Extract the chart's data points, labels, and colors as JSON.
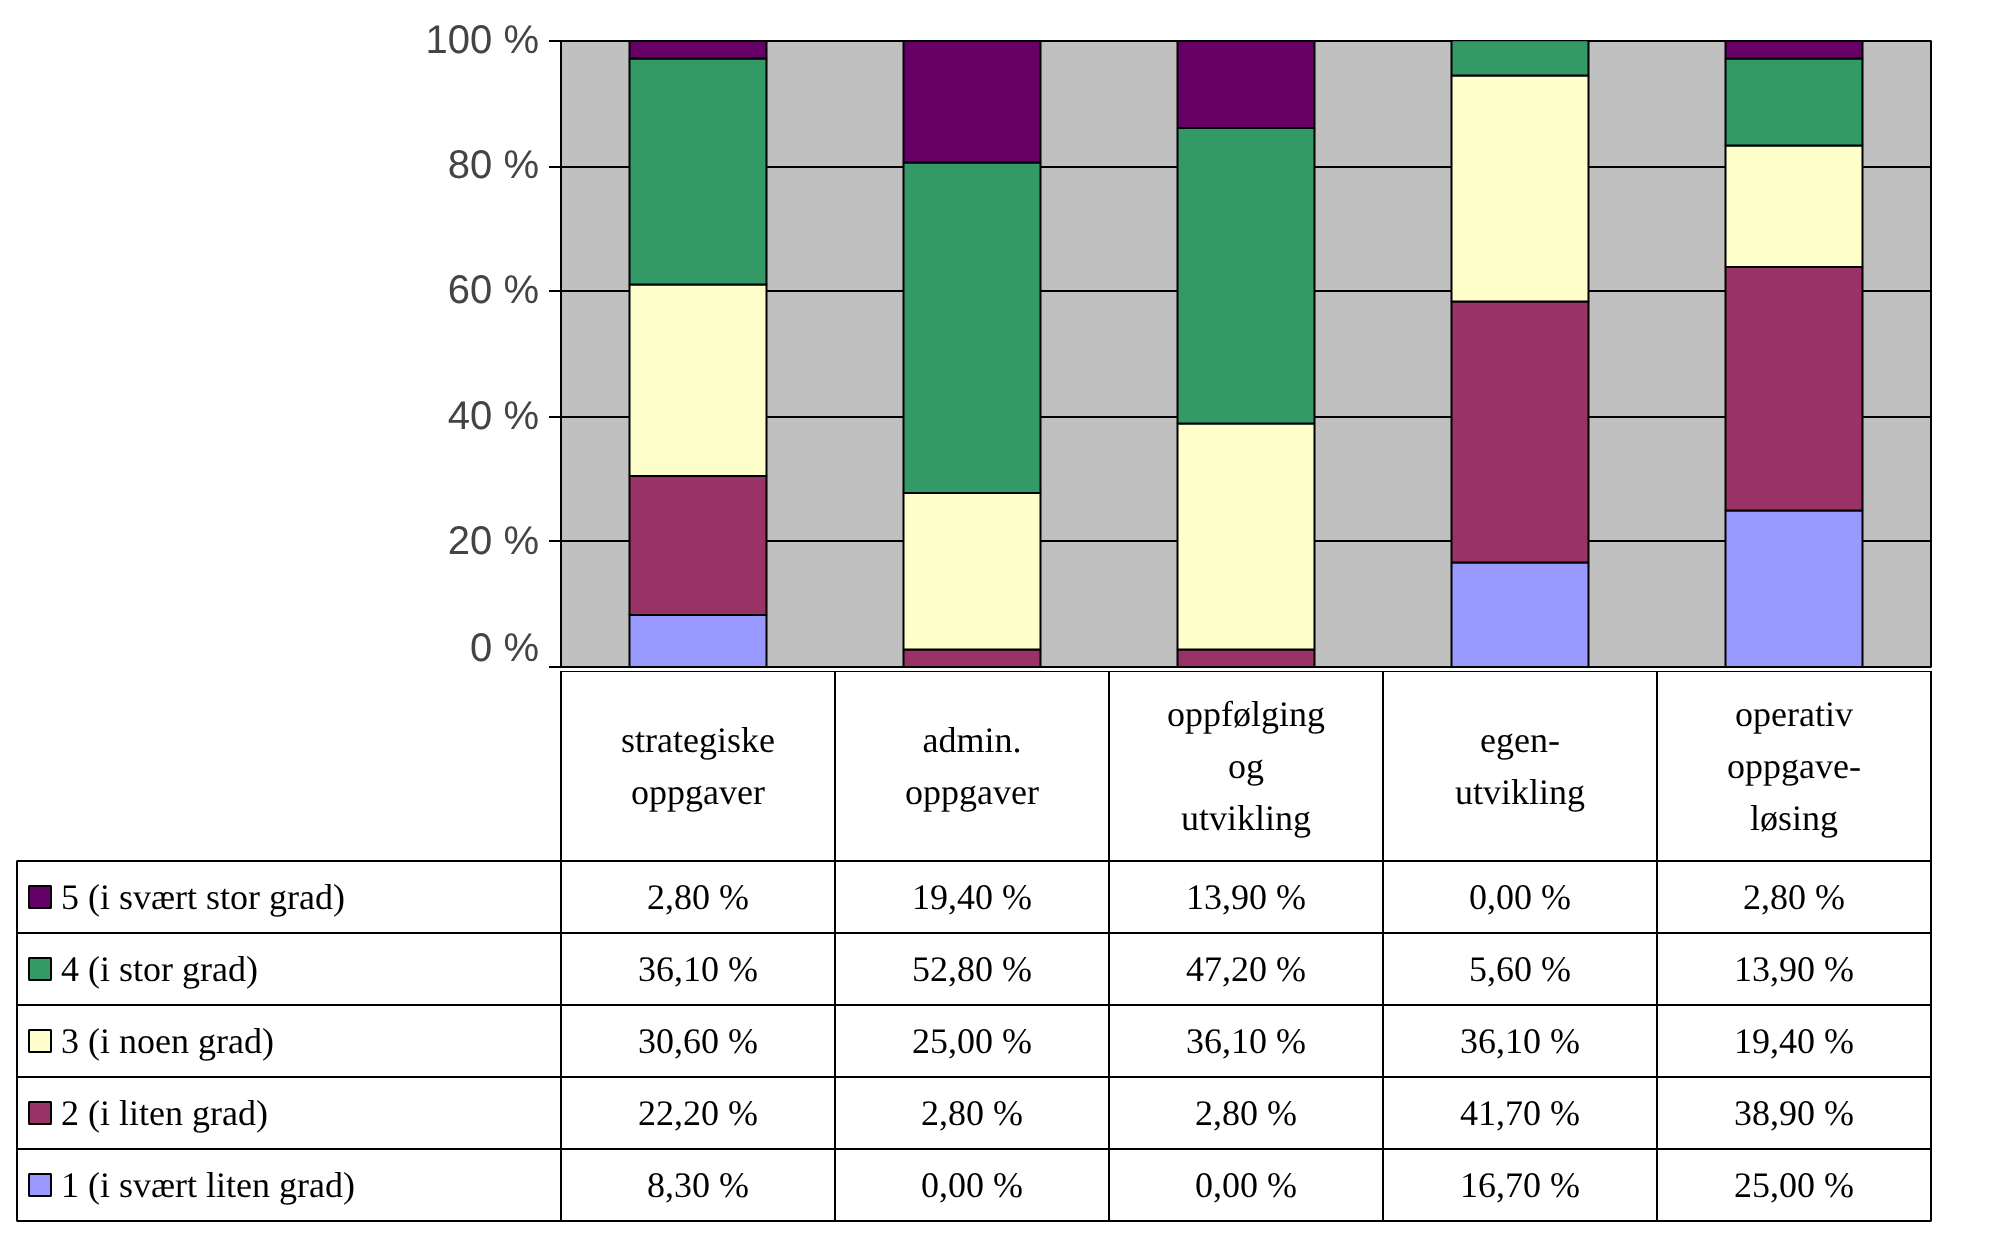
{
  "chart_data": {
    "type": "bar",
    "stacked": true,
    "categories": [
      "strategiske oppgaver",
      "admin. oppgaver",
      "oppfølging og utvikling",
      "egen-utvikling",
      "operativ oppgave-løsing"
    ],
    "series": [
      {
        "name": "1 (i svært liten grad)",
        "color": "#9999ff",
        "values": [
          8.3,
          0.0,
          0.0,
          16.7,
          25.0
        ],
        "value_labels": [
          "8,30 %",
          "0,00 %",
          "0,00 %",
          "16,70 %",
          "25,00 %"
        ]
      },
      {
        "name": "2 (i liten grad)",
        "color": "#993366",
        "values": [
          22.2,
          2.8,
          2.8,
          41.7,
          38.9
        ],
        "value_labels": [
          "22,20 %",
          "2,80 %",
          "2,80 %",
          "41,70 %",
          "38,90 %"
        ]
      },
      {
        "name": "3 (i noen grad)",
        "color": "#ffffcc",
        "values": [
          30.6,
          25.0,
          36.1,
          36.1,
          19.4
        ],
        "value_labels": [
          "30,60 %",
          "25,00 %",
          "36,10 %",
          "36,10 %",
          "19,40 %"
        ]
      },
      {
        "name": "4 (i stor grad)",
        "color": "#339966",
        "values": [
          36.1,
          52.8,
          47.2,
          5.6,
          13.9
        ],
        "value_labels": [
          "36,10 %",
          "52,80 %",
          "47,20 %",
          "5,60 %",
          "13,90 %"
        ]
      },
      {
        "name": "5 (i svært stor grad)",
        "color": "#660066",
        "values": [
          2.8,
          19.4,
          13.9,
          0.0,
          2.8
        ],
        "value_labels": [
          "2,80 %",
          "19,40 %",
          "13,90 %",
          "0,00 %",
          "2,80 %"
        ]
      }
    ],
    "ylim": [
      0,
      100
    ],
    "yticks": [
      {
        "value": 0,
        "label": "0 %"
      },
      {
        "value": 20,
        "label": "20 %"
      },
      {
        "value": 40,
        "label": "40 %"
      },
      {
        "value": 60,
        "label": "60 %"
      },
      {
        "value": 80,
        "label": "80 %"
      },
      {
        "value": 100,
        "label": "100 %"
      }
    ],
    "grid": "y",
    "legend": "bottom left"
  }
}
